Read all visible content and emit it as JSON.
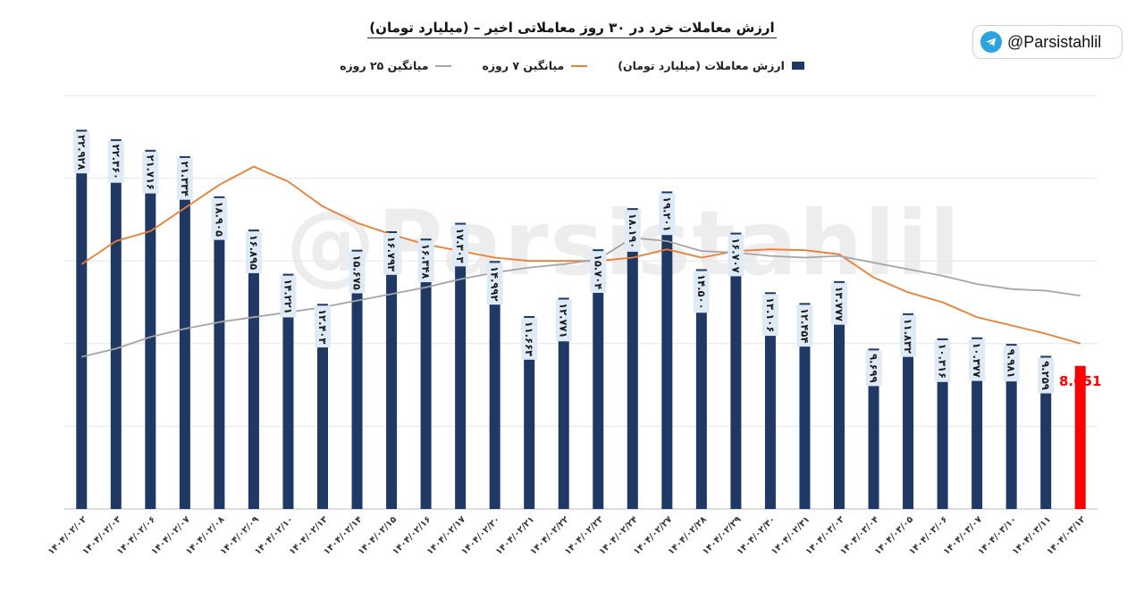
{
  "title": "ارزش معاملات خرد در ۳۰ روز معاملاتی اخیر – (میلیارد تومان)",
  "watermark": "@Parsistahlil",
  "badge": {
    "handle": "@Parsistahlil",
    "icon": "telegram-icon"
  },
  "colors": {
    "bar": "#1F3864",
    "last_bar": "#FF0000",
    "ma7": "#ED7D31",
    "ma25": "#A5A5A5",
    "label_bg": "#DEEBF7",
    "grid": "#E6E6E6"
  },
  "chart_data": {
    "type": "bar",
    "title": "ارزش معاملات خرد در ۳۰ روز معاملاتی اخیر – (میلیارد تومان)",
    "legend_position": "top",
    "grid": true,
    "ylim": [
      0,
      25
    ],
    "categories": [
      "۱۴۰۴/۰۲/۰۲",
      "۱۴۰۴/۰۲/۰۳",
      "۱۴۰۴/۰۲/۰۶",
      "۱۴۰۴/۰۲/۰۷",
      "۱۴۰۴/۰۲/۰۸",
      "۱۴۰۴/۰۲/۰۹",
      "۱۴۰۴/۰۲/۱۰",
      "۱۴۰۴/۰۲/۱۳",
      "۱۴۰۴/۰۲/۱۴",
      "۱۴۰۴/۰۲/۱۵",
      "۱۴۰۴/۰۲/۱۶",
      "۱۴۰۴/۰۲/۱۷",
      "۱۴۰۴/۰۲/۲۰",
      "۱۴۰۴/۰۲/۲۱",
      "۱۴۰۴/۰۲/۲۲",
      "۱۴۰۴/۰۲/۲۳",
      "۱۴۰۴/۰۲/۲۴",
      "۱۴۰۴/۰۲/۲۷",
      "۱۴۰۴/۰۲/۲۸",
      "۱۴۰۴/۰۲/۲۹",
      "۱۴۰۴/۰۲/۳۰",
      "۱۴۰۴/۰۲/۳۱",
      "۱۴۰۴/۰۳/۰۳",
      "۱۴۰۴/۰۳/۰۴",
      "۱۴۰۴/۰۳/۰۵",
      "۱۴۰۴/۰۳/۰۶",
      "۱۴۰۴/۰۳/۰۷",
      "۱۴۰۴/۰۳/۱۰",
      "۱۴۰۴/۰۳/۱۱",
      "۱۴۰۴/۰۳/۱۲"
    ],
    "value_labels": [
      "۲۲.۹۲۸",
      "۲۲.۳۶۰",
      "۲۱.۷۱۶",
      "۲۱.۳۳۴",
      "۱۸.۹۰۵",
      "۱۶.۸۹۵",
      "۱۴.۲۲۱",
      "۱۲.۴۰۳",
      "۱۵.۶۷۵",
      "۱۶.۷۹۳",
      "۱۶.۳۴۸",
      "۱۷.۳۰۳",
      "۱۴.۹۹۲",
      "۱۱.۶۶۳",
      "۱۲.۷۷۱",
      "۱۵.۷۰۴",
      "۱۸.۱۹۰",
      "۱۹.۲۰۱",
      "۱۴.۵۰۰",
      "۱۶.۷۰۷",
      "۱۳.۱۰۶",
      "۱۲.۴۵۴",
      "۱۳.۷۷۷",
      "۹.۶۹۹",
      "۱۱.۸۳۲",
      "۱۰.۳۱۶",
      "۱۰.۳۷۷",
      "۹.۹۸۱",
      "۹.۲۵۹",
      "8.651"
    ],
    "series": [
      {
        "name": "ارزش معاملات (میلیارد تومان)",
        "type": "bar",
        "values": [
          22.928,
          22.36,
          21.716,
          21.334,
          18.905,
          16.895,
          14.221,
          12.403,
          15.675,
          16.793,
          16.348,
          17.303,
          14.992,
          11.663,
          12.771,
          15.704,
          18.19,
          19.201,
          14.5,
          16.707,
          13.106,
          12.454,
          13.777,
          9.699,
          11.832,
          10.316,
          10.377,
          9.981,
          9.259,
          8.651
        ]
      },
      {
        "name": "میانگین ۷ روزه",
        "type": "line",
        "values": [
          14.8,
          16.2,
          16.8,
          18.2,
          19.6,
          20.7,
          19.8,
          18.3,
          17.3,
          16.6,
          16.0,
          15.6,
          15.2,
          15.0,
          15.0,
          15.0,
          15.2,
          15.7,
          15.2,
          15.6,
          15.7,
          15.65,
          15.4,
          14.0,
          13.1,
          12.5,
          11.6,
          11.1,
          10.6,
          10.0
        ]
      },
      {
        "name": "میانگین ۲۵ روزه",
        "type": "line",
        "values": [
          9.2,
          9.7,
          10.4,
          10.9,
          11.3,
          11.6,
          11.9,
          12.2,
          12.6,
          13.0,
          13.4,
          13.9,
          14.3,
          14.6,
          14.8,
          15.1,
          16.4,
          16.2,
          15.6,
          15.5,
          15.3,
          15.2,
          15.3,
          14.9,
          14.5,
          14.1,
          13.6,
          13.3,
          13.2,
          12.9
        ]
      }
    ]
  }
}
